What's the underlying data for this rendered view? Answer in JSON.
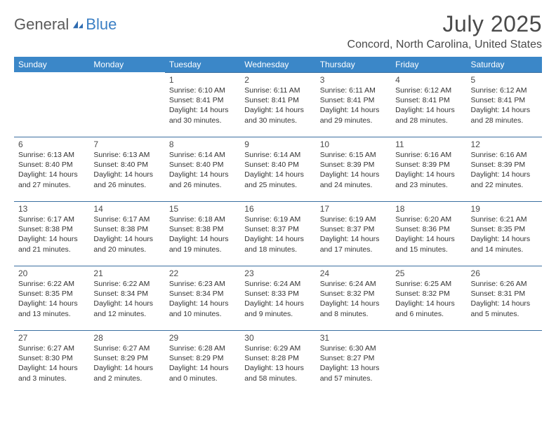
{
  "brand": {
    "text1": "General",
    "text2": "Blue"
  },
  "title": "July 2025",
  "location": "Concord, North Carolina, United States",
  "colors": {
    "header_bg": "#3b87c8",
    "header_text": "#ffffff",
    "row_divider": "#3b6fa0",
    "body_text": "#333333",
    "title_text": "#4a4a4a",
    "logo_accent": "#2e6bb0"
  },
  "day_headers": [
    "Sunday",
    "Monday",
    "Tuesday",
    "Wednesday",
    "Thursday",
    "Friday",
    "Saturday"
  ],
  "weeks": [
    [
      {
        "blank": true
      },
      {
        "blank": true
      },
      {
        "day": "1",
        "sunrise": "Sunrise: 6:10 AM",
        "sunset": "Sunset: 8:41 PM",
        "daylight1": "Daylight: 14 hours",
        "daylight2": "and 30 minutes."
      },
      {
        "day": "2",
        "sunrise": "Sunrise: 6:11 AM",
        "sunset": "Sunset: 8:41 PM",
        "daylight1": "Daylight: 14 hours",
        "daylight2": "and 30 minutes."
      },
      {
        "day": "3",
        "sunrise": "Sunrise: 6:11 AM",
        "sunset": "Sunset: 8:41 PM",
        "daylight1": "Daylight: 14 hours",
        "daylight2": "and 29 minutes."
      },
      {
        "day": "4",
        "sunrise": "Sunrise: 6:12 AM",
        "sunset": "Sunset: 8:41 PM",
        "daylight1": "Daylight: 14 hours",
        "daylight2": "and 28 minutes."
      },
      {
        "day": "5",
        "sunrise": "Sunrise: 6:12 AM",
        "sunset": "Sunset: 8:41 PM",
        "daylight1": "Daylight: 14 hours",
        "daylight2": "and 28 minutes."
      }
    ],
    [
      {
        "day": "6",
        "sunrise": "Sunrise: 6:13 AM",
        "sunset": "Sunset: 8:40 PM",
        "daylight1": "Daylight: 14 hours",
        "daylight2": "and 27 minutes."
      },
      {
        "day": "7",
        "sunrise": "Sunrise: 6:13 AM",
        "sunset": "Sunset: 8:40 PM",
        "daylight1": "Daylight: 14 hours",
        "daylight2": "and 26 minutes."
      },
      {
        "day": "8",
        "sunrise": "Sunrise: 6:14 AM",
        "sunset": "Sunset: 8:40 PM",
        "daylight1": "Daylight: 14 hours",
        "daylight2": "and 26 minutes."
      },
      {
        "day": "9",
        "sunrise": "Sunrise: 6:14 AM",
        "sunset": "Sunset: 8:40 PM",
        "daylight1": "Daylight: 14 hours",
        "daylight2": "and 25 minutes."
      },
      {
        "day": "10",
        "sunrise": "Sunrise: 6:15 AM",
        "sunset": "Sunset: 8:39 PM",
        "daylight1": "Daylight: 14 hours",
        "daylight2": "and 24 minutes."
      },
      {
        "day": "11",
        "sunrise": "Sunrise: 6:16 AM",
        "sunset": "Sunset: 8:39 PM",
        "daylight1": "Daylight: 14 hours",
        "daylight2": "and 23 minutes."
      },
      {
        "day": "12",
        "sunrise": "Sunrise: 6:16 AM",
        "sunset": "Sunset: 8:39 PM",
        "daylight1": "Daylight: 14 hours",
        "daylight2": "and 22 minutes."
      }
    ],
    [
      {
        "day": "13",
        "sunrise": "Sunrise: 6:17 AM",
        "sunset": "Sunset: 8:38 PM",
        "daylight1": "Daylight: 14 hours",
        "daylight2": "and 21 minutes."
      },
      {
        "day": "14",
        "sunrise": "Sunrise: 6:17 AM",
        "sunset": "Sunset: 8:38 PM",
        "daylight1": "Daylight: 14 hours",
        "daylight2": "and 20 minutes."
      },
      {
        "day": "15",
        "sunrise": "Sunrise: 6:18 AM",
        "sunset": "Sunset: 8:38 PM",
        "daylight1": "Daylight: 14 hours",
        "daylight2": "and 19 minutes."
      },
      {
        "day": "16",
        "sunrise": "Sunrise: 6:19 AM",
        "sunset": "Sunset: 8:37 PM",
        "daylight1": "Daylight: 14 hours",
        "daylight2": "and 18 minutes."
      },
      {
        "day": "17",
        "sunrise": "Sunrise: 6:19 AM",
        "sunset": "Sunset: 8:37 PM",
        "daylight1": "Daylight: 14 hours",
        "daylight2": "and 17 minutes."
      },
      {
        "day": "18",
        "sunrise": "Sunrise: 6:20 AM",
        "sunset": "Sunset: 8:36 PM",
        "daylight1": "Daylight: 14 hours",
        "daylight2": "and 15 minutes."
      },
      {
        "day": "19",
        "sunrise": "Sunrise: 6:21 AM",
        "sunset": "Sunset: 8:35 PM",
        "daylight1": "Daylight: 14 hours",
        "daylight2": "and 14 minutes."
      }
    ],
    [
      {
        "day": "20",
        "sunrise": "Sunrise: 6:22 AM",
        "sunset": "Sunset: 8:35 PM",
        "daylight1": "Daylight: 14 hours",
        "daylight2": "and 13 minutes."
      },
      {
        "day": "21",
        "sunrise": "Sunrise: 6:22 AM",
        "sunset": "Sunset: 8:34 PM",
        "daylight1": "Daylight: 14 hours",
        "daylight2": "and 12 minutes."
      },
      {
        "day": "22",
        "sunrise": "Sunrise: 6:23 AM",
        "sunset": "Sunset: 8:34 PM",
        "daylight1": "Daylight: 14 hours",
        "daylight2": "and 10 minutes."
      },
      {
        "day": "23",
        "sunrise": "Sunrise: 6:24 AM",
        "sunset": "Sunset: 8:33 PM",
        "daylight1": "Daylight: 14 hours",
        "daylight2": "and 9 minutes."
      },
      {
        "day": "24",
        "sunrise": "Sunrise: 6:24 AM",
        "sunset": "Sunset: 8:32 PM",
        "daylight1": "Daylight: 14 hours",
        "daylight2": "and 8 minutes."
      },
      {
        "day": "25",
        "sunrise": "Sunrise: 6:25 AM",
        "sunset": "Sunset: 8:32 PM",
        "daylight1": "Daylight: 14 hours",
        "daylight2": "and 6 minutes."
      },
      {
        "day": "26",
        "sunrise": "Sunrise: 6:26 AM",
        "sunset": "Sunset: 8:31 PM",
        "daylight1": "Daylight: 14 hours",
        "daylight2": "and 5 minutes."
      }
    ],
    [
      {
        "day": "27",
        "sunrise": "Sunrise: 6:27 AM",
        "sunset": "Sunset: 8:30 PM",
        "daylight1": "Daylight: 14 hours",
        "daylight2": "and 3 minutes."
      },
      {
        "day": "28",
        "sunrise": "Sunrise: 6:27 AM",
        "sunset": "Sunset: 8:29 PM",
        "daylight1": "Daylight: 14 hours",
        "daylight2": "and 2 minutes."
      },
      {
        "day": "29",
        "sunrise": "Sunrise: 6:28 AM",
        "sunset": "Sunset: 8:29 PM",
        "daylight1": "Daylight: 14 hours",
        "daylight2": "and 0 minutes."
      },
      {
        "day": "30",
        "sunrise": "Sunrise: 6:29 AM",
        "sunset": "Sunset: 8:28 PM",
        "daylight1": "Daylight: 13 hours",
        "daylight2": "and 58 minutes."
      },
      {
        "day": "31",
        "sunrise": "Sunrise: 6:30 AM",
        "sunset": "Sunset: 8:27 PM",
        "daylight1": "Daylight: 13 hours",
        "daylight2": "and 57 minutes."
      },
      {
        "blank": true
      },
      {
        "blank": true
      }
    ]
  ]
}
